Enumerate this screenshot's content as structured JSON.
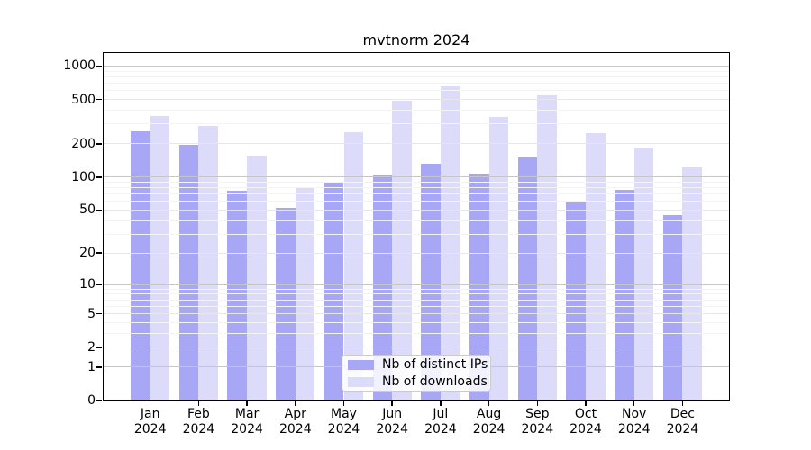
{
  "colors": {
    "ips": "#a7a7f6",
    "downloads": "#dcdcfa",
    "grid_strong": "#c6c6c6",
    "grid_mid": "#e7e7e7",
    "grid_faint": "#f4f4f4",
    "axis": "#000000",
    "legend_border": "#cccccc"
  },
  "chart_data": {
    "type": "bar",
    "title": "mvtnorm 2024",
    "categories": [
      "Jan 2024",
      "Feb 2024",
      "Mar 2024",
      "Apr 2024",
      "May 2024",
      "Jun 2024",
      "Jul 2024",
      "Aug 2024",
      "Sep 2024",
      "Oct 2024",
      "Nov 2024",
      "Dec 2024"
    ],
    "series": [
      {
        "name": "Nb of distinct IPs",
        "values": [
          260,
          195,
          75,
          52,
          90,
          105,
          132,
          108,
          150,
          59,
          76,
          45
        ]
      },
      {
        "name": "Nb of downloads",
        "values": [
          355,
          290,
          155,
          80,
          255,
          490,
          650,
          350,
          540,
          250,
          185,
          122
        ]
      }
    ],
    "xlabel": "",
    "ylabel": "",
    "yscale": "log1p",
    "ylim": [
      0,
      1330
    ],
    "yticks": [
      0,
      1,
      2,
      5,
      10,
      20,
      50,
      100,
      200,
      500,
      1000
    ],
    "yticks_minor": [
      3,
      4,
      6,
      7,
      8,
      9,
      30,
      40,
      60,
      70,
      80,
      90,
      300,
      400,
      600,
      700,
      800,
      900
    ],
    "grid": true,
    "legend_position": "lower center"
  }
}
